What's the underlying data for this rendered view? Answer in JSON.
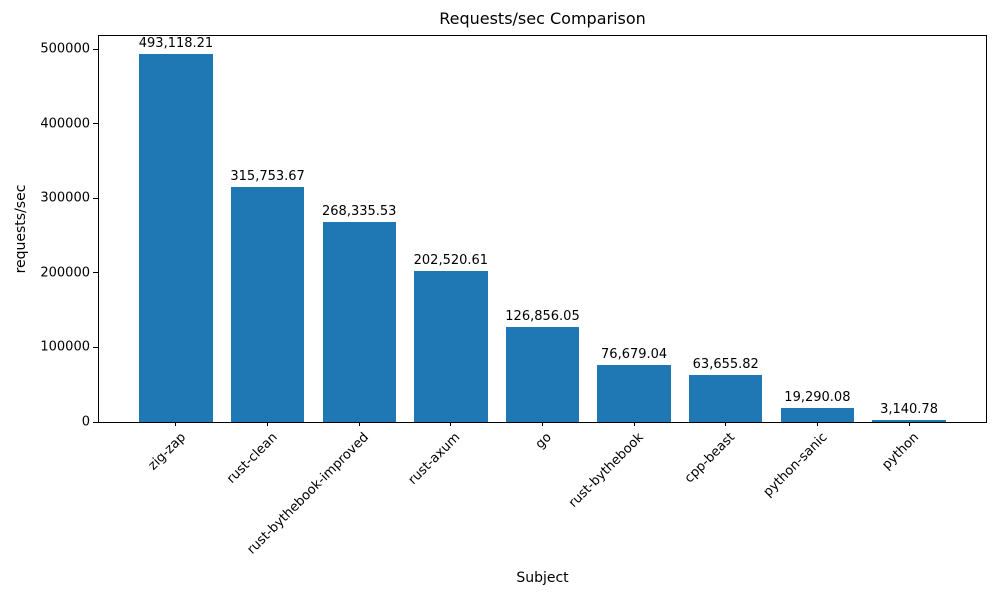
{
  "chart_data": {
    "type": "bar",
    "title": "Requests/sec Comparison",
    "xlabel": "Subject",
    "ylabel": "requests/sec",
    "categories": [
      "zig-zap",
      "rust-clean",
      "rust-bythebook-improved",
      "rust-axum",
      "go",
      "rust-bythebook",
      "cpp-beast",
      "python-sanic",
      "python"
    ],
    "values": [
      493118.21,
      315753.67,
      268335.53,
      202520.61,
      126856.05,
      76679.04,
      63655.82,
      19290.08,
      3140.78
    ],
    "value_labels": [
      "493,118.21",
      "315,753.67",
      "268,335.53",
      "202,520.61",
      "126,856.05",
      "76,679.04",
      "63,655.82",
      "19,290.08",
      "3,140.78"
    ],
    "bar_color": "#1f77b4",
    "text_color": "#000000",
    "ylim": [
      0,
      517774
    ],
    "yticks": [
      0,
      100000,
      200000,
      300000,
      400000,
      500000
    ],
    "ytick_labels": [
      "0",
      "100000",
      "200000",
      "300000",
      "400000",
      "500000"
    ],
    "grid": false,
    "legend": null,
    "bar_width_fraction": 0.8,
    "x_margin_fraction": 0.05,
    "tick_rotation_deg": 45
  }
}
